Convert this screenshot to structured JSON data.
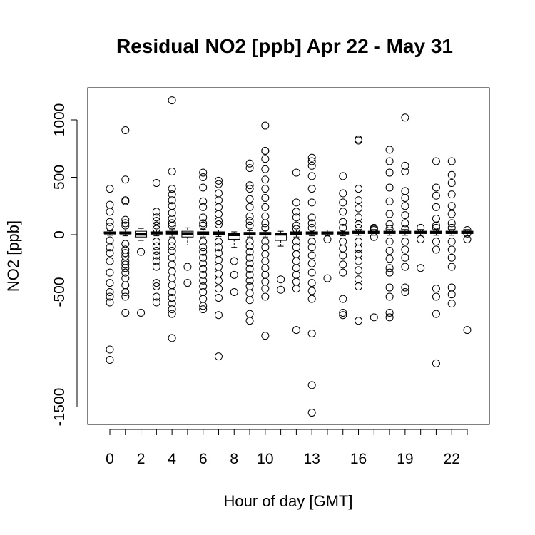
{
  "chart_data": {
    "type": "boxplot",
    "title": "Residual NO2 [ppb] Apr 22 - May 31",
    "xlabel": "Hour of day [GMT]",
    "ylabel": "NO2 [ppb]",
    "ylim": [
      -1650,
      1250
    ],
    "xlim": [
      -1,
      24
    ],
    "y_ticks": [
      1000,
      500,
      0,
      -500,
      -1500
    ],
    "y_tick_labels": [
      "1000",
      "500",
      "0",
      "-500",
      "-1500"
    ],
    "x_ticks": [
      0,
      2,
      4,
      6,
      8,
      10,
      13,
      16,
      19,
      22
    ],
    "x_tick_labels": [
      "0",
      "2",
      "4",
      "6",
      "8",
      "10",
      "13",
      "16",
      "19",
      "22"
    ],
    "categories": [
      0,
      1,
      2,
      3,
      4,
      5,
      6,
      7,
      8,
      9,
      10,
      11,
      12,
      13,
      14,
      15,
      16,
      17,
      18,
      19,
      20,
      21,
      22,
      23
    ],
    "boxes": [
      {
        "q1": 10,
        "median": 15,
        "q3": 25,
        "wlo": -5,
        "whi": 35
      },
      {
        "q1": 8,
        "median": 15,
        "q3": 25,
        "wlo": -10,
        "whi": 40
      },
      {
        "q1": -20,
        "median": 5,
        "q3": 30,
        "wlo": -50,
        "whi": 55
      },
      {
        "q1": 5,
        "median": 15,
        "q3": 25,
        "wlo": -10,
        "whi": 40
      },
      {
        "q1": 5,
        "median": 15,
        "q3": 30,
        "wlo": -20,
        "whi": 50
      },
      {
        "q1": -20,
        "median": 10,
        "q3": 30,
        "wlo": -90,
        "whi": 60
      },
      {
        "q1": 0,
        "median": 15,
        "q3": 25,
        "wlo": -20,
        "whi": 45
      },
      {
        "q1": 0,
        "median": 15,
        "q3": 25,
        "wlo": -15,
        "whi": 40
      },
      {
        "q1": -40,
        "median": 0,
        "q3": 15,
        "wlo": -110,
        "whi": 25
      },
      {
        "q1": 0,
        "median": 10,
        "q3": 20,
        "wlo": -20,
        "whi": 35
      },
      {
        "q1": 0,
        "median": 10,
        "q3": 20,
        "wlo": -20,
        "whi": 35
      },
      {
        "q1": -50,
        "median": 5,
        "q3": 15,
        "wlo": -100,
        "whi": 30
      },
      {
        "q1": 0,
        "median": 10,
        "q3": 25,
        "wlo": -20,
        "whi": 40
      },
      {
        "q1": 5,
        "median": 15,
        "q3": 25,
        "wlo": -10,
        "whi": 40
      },
      {
        "q1": 5,
        "median": 15,
        "q3": 25,
        "wlo": -10,
        "whi": 40
      },
      {
        "q1": 5,
        "median": 15,
        "q3": 25,
        "wlo": -10,
        "whi": 40
      },
      {
        "q1": 10,
        "median": 20,
        "q3": 30,
        "wlo": -5,
        "whi": 45
      },
      {
        "q1": 10,
        "median": 20,
        "q3": 30,
        "wlo": -5,
        "whi": 45
      },
      {
        "q1": 10,
        "median": 20,
        "q3": 30,
        "wlo": -5,
        "whi": 45
      },
      {
        "q1": 10,
        "median": 20,
        "q3": 30,
        "wlo": -5,
        "whi": 45
      },
      {
        "q1": 10,
        "median": 20,
        "q3": 30,
        "wlo": -5,
        "whi": 45
      },
      {
        "q1": 10,
        "median": 20,
        "q3": 30,
        "wlo": -5,
        "whi": 45
      },
      {
        "q1": 10,
        "median": 20,
        "q3": 30,
        "wlo": -5,
        "whi": 45
      },
      {
        "q1": 10,
        "median": 20,
        "q3": 30,
        "wlo": -5,
        "whi": 45
      }
    ],
    "outliers": [
      [
        400,
        260,
        200,
        110,
        70,
        -50,
        -110,
        -160,
        -230,
        -330,
        -420,
        -500,
        -540,
        -590,
        -1000,
        -1090
      ],
      [
        910,
        480,
        300,
        290,
        130,
        100,
        80,
        -80,
        -130,
        -160,
        -190,
        -230,
        -260,
        -290,
        -330,
        -380,
        -440,
        -500,
        -540,
        -680
      ],
      [
        -150,
        -680
      ],
      [
        450,
        200,
        150,
        120,
        80,
        50,
        -60,
        -100,
        -140,
        -180,
        -230,
        -280,
        -420,
        -450,
        -540,
        -590
      ],
      [
        1170,
        550,
        400,
        350,
        300,
        250,
        190,
        140,
        100,
        80,
        -60,
        -100,
        -140,
        -200,
        -260,
        -320,
        -380,
        -440,
        -500,
        -550,
        -600,
        -650,
        -690,
        -900
      ],
      [
        -280,
        -420
      ],
      [
        540,
        500,
        410,
        290,
        240,
        150,
        100,
        80,
        -60,
        -110,
        -150,
        -200,
        -250,
        -300,
        -350,
        -400,
        -450,
        -500,
        -560,
        -620,
        -650
      ],
      [
        470,
        440,
        360,
        300,
        240,
        180,
        120,
        90,
        -60,
        -110,
        -160,
        -220,
        -280,
        -340,
        -400,
        -470,
        -550,
        -700,
        -1060
      ],
      [
        -230,
        -350,
        -500
      ],
      [
        620,
        580,
        430,
        400,
        310,
        240,
        160,
        120,
        80,
        -60,
        -100,
        -150,
        -200,
        -250,
        -300,
        -350,
        -400,
        -450,
        -510,
        -570,
        -690,
        -750
      ],
      [
        950,
        730,
        730,
        660,
        570,
        480,
        400,
        320,
        240,
        160,
        100,
        60,
        -60,
        -110,
        -170,
        -230,
        -290,
        -350,
        -410,
        -470,
        -540,
        -880
      ],
      [
        -390,
        -480
      ],
      [
        540,
        280,
        200,
        150,
        80,
        50,
        -60,
        -110,
        -170,
        -230,
        -290,
        -350,
        -410,
        -470,
        -830
      ],
      [
        670,
        640,
        600,
        510,
        400,
        280,
        150,
        100,
        60,
        -60,
        -110,
        -180,
        -250,
        -330,
        -420,
        -490,
        -560,
        -860,
        -1310,
        -1550
      ],
      [
        -40,
        -380
      ],
      [
        510,
        360,
        280,
        200,
        110,
        60,
        -60,
        -120,
        -180,
        -260,
        -330,
        -560,
        -680,
        -700
      ],
      [
        830,
        820,
        400,
        300,
        230,
        150,
        90,
        60,
        -60,
        -120,
        -170,
        -230,
        -310,
        -390,
        -450,
        -750
      ],
      [
        60,
        50,
        40,
        -20,
        -720
      ],
      [
        740,
        640,
        540,
        410,
        290,
        180,
        90,
        50,
        -60,
        -140,
        -210,
        -290,
        -330,
        -460,
        -540,
        -680,
        -720
      ],
      [
        1020,
        600,
        550,
        380,
        320,
        250,
        170,
        100,
        50,
        -60,
        -130,
        -200,
        -280,
        -460,
        -500
      ],
      [
        60,
        -40,
        -290
      ],
      [
        640,
        410,
        340,
        240,
        140,
        80,
        60,
        -60,
        -130,
        -470,
        -540,
        -690,
        -1120
      ],
      [
        640,
        520,
        450,
        350,
        250,
        180,
        100,
        60,
        -60,
        -130,
        -200,
        -280,
        -460,
        -520,
        -600
      ],
      [
        40,
        10,
        -40,
        -830
      ]
    ]
  }
}
